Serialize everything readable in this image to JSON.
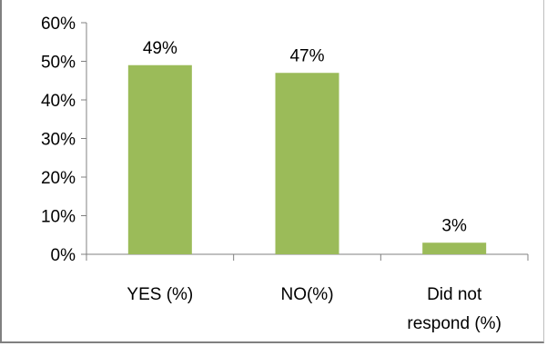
{
  "chart_data": {
    "type": "bar",
    "categories": [
      "YES (%)",
      "NO(%)",
      "Did not respond (%)"
    ],
    "category_lines": [
      [
        "YES (%)"
      ],
      [
        "NO(%)"
      ],
      [
        "Did not",
        "respond (%)"
      ]
    ],
    "values": [
      49,
      47,
      3
    ],
    "data_labels": [
      "49%",
      "47%",
      "3%"
    ],
    "title": "",
    "xlabel": "",
    "ylabel": "",
    "ylim": [
      0,
      60
    ],
    "yticks": [
      0,
      10,
      20,
      30,
      40,
      50,
      60
    ],
    "ytick_labels": [
      "0%",
      "10%",
      "20%",
      "30%",
      "40%",
      "50%",
      "60%"
    ],
    "grid": false,
    "legend": "none",
    "bar_color": "#9bbb59",
    "axis_color": "#808080"
  }
}
